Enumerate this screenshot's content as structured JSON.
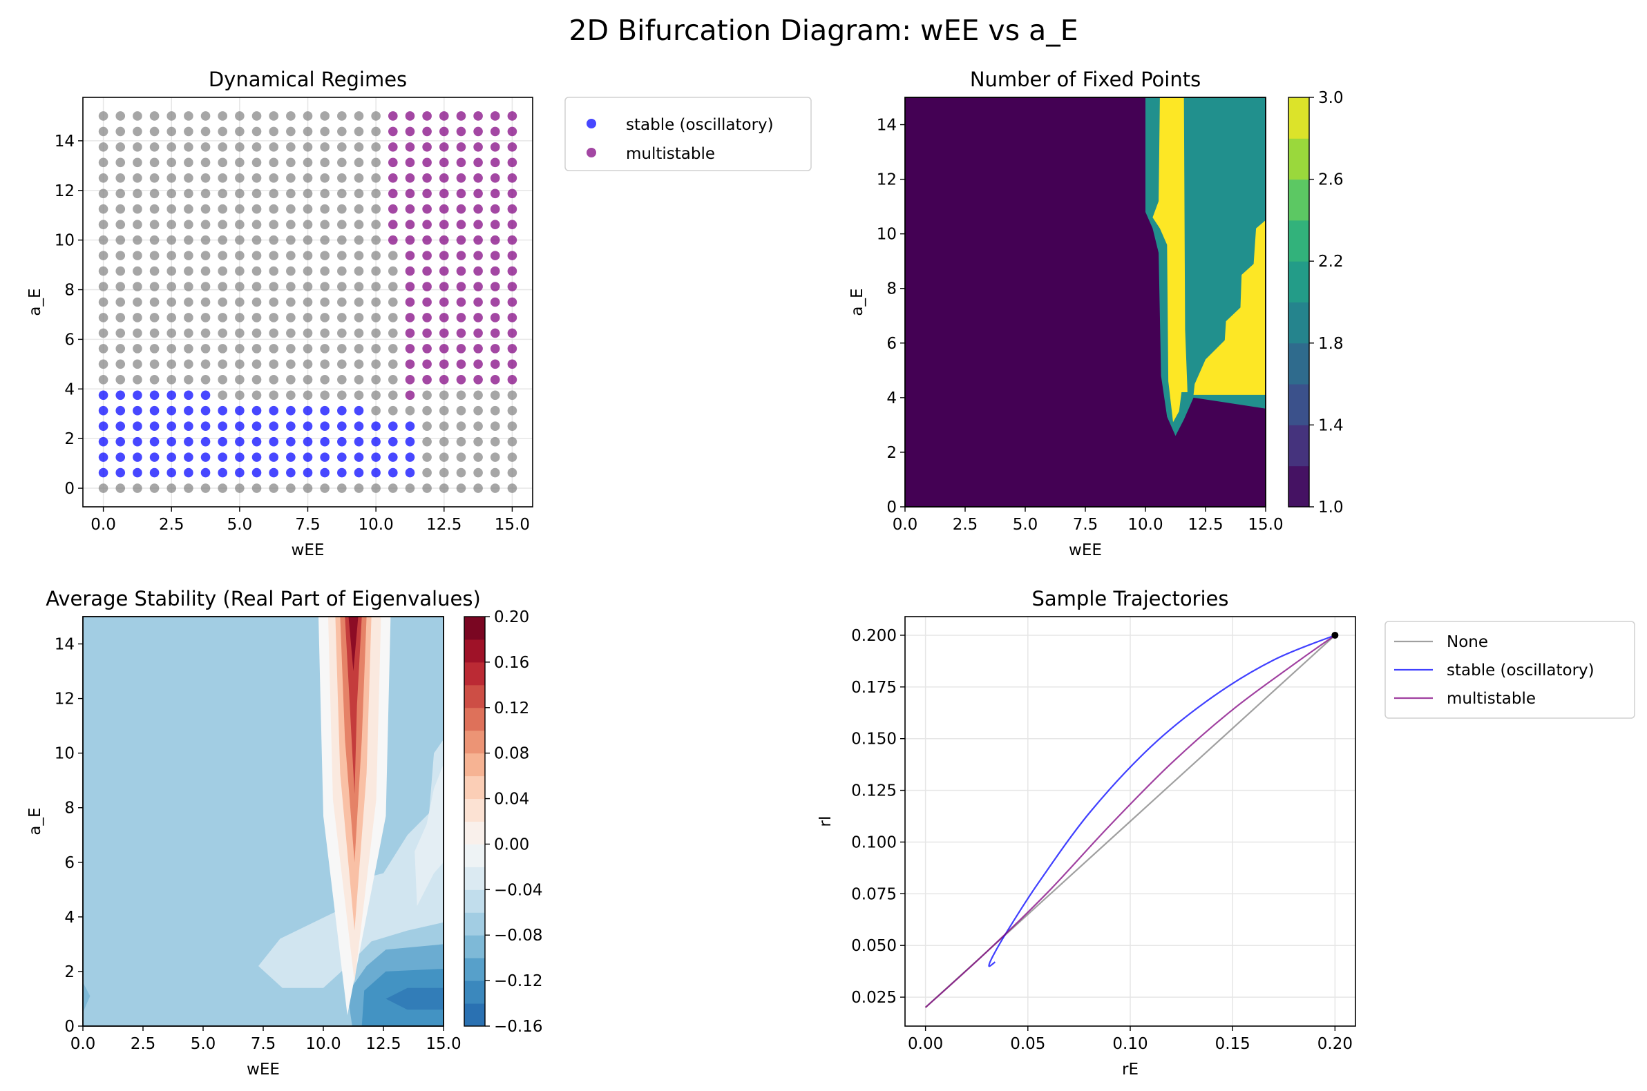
{
  "figure": {
    "title": "2D Bifurcation Diagram: wEE vs a_E"
  },
  "colors": {
    "stable": "#0000ff",
    "multistable": "#800080",
    "none": "#808080",
    "fixed_point_marker": "#000000",
    "grid": "#e6e6e6",
    "viridis": [
      "#440154",
      "#472c7a",
      "#3b518b",
      "#2c718e",
      "#21908d",
      "#27ad81",
      "#5cc863",
      "#aadc32",
      "#fde725"
    ],
    "rdbu_r": [
      "#053061",
      "#2166ac",
      "#4393c3",
      "#92c5de",
      "#d1e5f0",
      "#f7f7f7",
      "#fddbc7",
      "#f4a582",
      "#d6604d",
      "#b2182b",
      "#67001f"
    ]
  },
  "chart_data": [
    {
      "id": "regimes",
      "type": "scatter",
      "title": "Dynamical Regimes",
      "xlabel": "wEE",
      "ylabel": "a_E",
      "xlim": [
        -0.75,
        15.75
      ],
      "ylim": [
        -0.75,
        15.75
      ],
      "xticks": [
        "0.0",
        "2.5",
        "5.0",
        "7.5",
        "10.0",
        "12.5",
        "15.0"
      ],
      "yticks": [
        "0",
        "2",
        "4",
        "6",
        "8",
        "10",
        "12",
        "14"
      ],
      "grid": true,
      "legend_position": "outside upper right",
      "grid_spacing": 0.625,
      "series": [
        {
          "name": "",
          "key": "none",
          "rule": "all remaining grid points"
        },
        {
          "name": "stable (oscillatory)",
          "key": "stable",
          "rule": "a_E 0.625–3.75 for wEE 0–3.75; a_E 0.625–3.125 for wEE 4.375–9.375; a_E 0.625–2.5 for wEE 10–11.25"
        },
        {
          "name": "multistable",
          "key": "multistable",
          "rule": "wEE 10.625: a_E 10–15; wEE 11.25: a_E 4.375–15; wEE 11.875–15: a_E 4.375–15 plus wEE 11.25 a_E 3.75"
        }
      ],
      "legend": [
        "stable (oscillatory)",
        "multistable"
      ]
    },
    {
      "id": "fixed_points",
      "type": "heatmap",
      "title": "Number of Fixed Points",
      "xlabel": "wEE",
      "ylabel": "a_E",
      "xlim": [
        0,
        15
      ],
      "ylim": [
        0,
        15
      ],
      "xticks": [
        "0.0",
        "2.5",
        "5.0",
        "7.5",
        "10.0",
        "12.5",
        "15.0"
      ],
      "yticks": [
        "0",
        "2",
        "4",
        "6",
        "8",
        "10",
        "12",
        "14"
      ],
      "colorbar_ticks": [
        "1.0",
        "1.4",
        "1.8",
        "2.2",
        "2.6",
        "3.0"
      ],
      "colorbar_range": [
        1.0,
        3.0
      ],
      "regions": [
        {
          "label": "background",
          "value": 1
        },
        {
          "label": "yellow band near wEE 10.6–11.8",
          "value": 3
        },
        {
          "label": "teal block wEE 11.8–15, a_E 4–15",
          "value": 2
        },
        {
          "label": "yellow wedge wEE 12–15, a_E 4–10",
          "value": 3
        }
      ]
    },
    {
      "id": "stability",
      "type": "heatmap",
      "title": "Average Stability (Real Part of Eigenvalues)",
      "xlabel": "wEE",
      "ylabel": "a_E",
      "xlim": [
        0,
        15
      ],
      "ylim": [
        0,
        15
      ],
      "xticks": [
        "0.0",
        "2.5",
        "5.0",
        "7.5",
        "10.0",
        "12.5",
        "15.0"
      ],
      "yticks": [
        "0",
        "2",
        "4",
        "6",
        "8",
        "10",
        "12",
        "14"
      ],
      "colorbar_ticks": [
        "0.20",
        "0.16",
        "0.12",
        "0.08",
        "0.04",
        "0.00",
        "−0.04",
        "−0.08",
        "−0.12",
        "−0.16"
      ],
      "colorbar_range": [
        -0.16,
        0.2
      ],
      "regions": [
        {
          "label": "background",
          "value": -0.07
        },
        {
          "label": "red ridge at wEE ~11.2",
          "value": 0.2
        },
        {
          "label": "pale area wEE 8–15, a_E 1–7",
          "value": -0.04
        },
        {
          "label": "dark area wEE 13–15, a_E 0–2",
          "value": -0.14
        }
      ]
    },
    {
      "id": "trajectories",
      "type": "line",
      "title": "Sample Trajectories",
      "xlabel": "rE",
      "ylabel": "rI",
      "xlim": [
        -0.01,
        0.21
      ],
      "ylim": [
        0.011,
        0.209
      ],
      "xticks": [
        "0.00",
        "0.05",
        "0.10",
        "0.15",
        "0.20"
      ],
      "yticks": [
        "0.025",
        "0.050",
        "0.075",
        "0.100",
        "0.125",
        "0.150",
        "0.175",
        "0.200"
      ],
      "grid": true,
      "legend_position": "outside upper right",
      "series": [
        {
          "name": "None",
          "key": "none",
          "points": [
            [
              0.2,
              0.2
            ],
            [
              0.0,
              0.02
            ]
          ]
        },
        {
          "name": "stable (oscillatory)",
          "key": "stable",
          "points": [
            [
              0.2,
              0.2
            ],
            [
              0.17,
              0.188
            ],
            [
              0.14,
              0.17
            ],
            [
              0.11,
              0.146
            ],
            [
              0.08,
              0.114
            ],
            [
              0.055,
              0.08
            ],
            [
              0.04,
              0.057
            ],
            [
              0.033,
              0.045
            ],
            [
              0.031,
              0.04
            ],
            [
              0.034,
              0.042
            ]
          ]
        },
        {
          "name": "multistable",
          "key": "multistable",
          "points": [
            [
              0.2,
              0.2
            ],
            [
              0.18,
              0.186
            ],
            [
              0.15,
              0.164
            ],
            [
              0.12,
              0.138
            ],
            [
              0.09,
              0.108
            ],
            [
              0.06,
              0.076
            ],
            [
              0.03,
              0.047
            ],
            [
              0.0,
              0.02
            ]
          ]
        }
      ],
      "marker": {
        "x": 0.2,
        "y": 0.2
      },
      "legend": [
        "None",
        "stable (oscillatory)",
        "multistable"
      ]
    }
  ]
}
